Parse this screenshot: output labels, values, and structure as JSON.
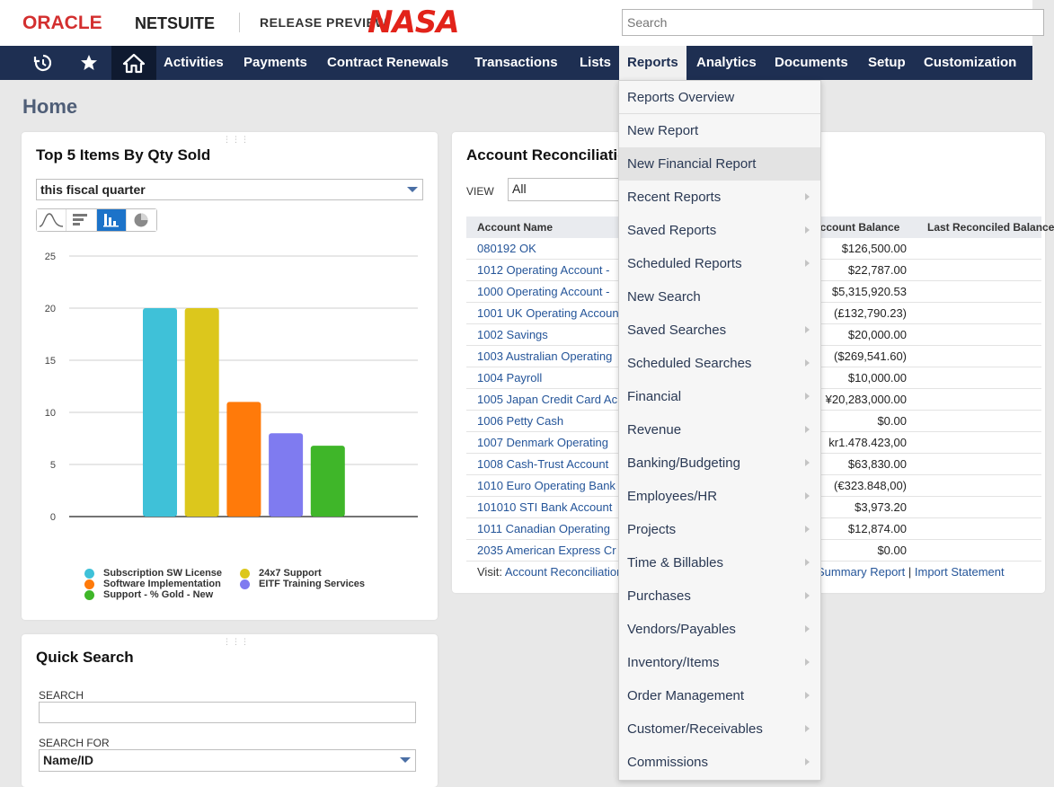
{
  "header": {
    "oracle": "ORACLE",
    "netsuite": "NETSUITE",
    "release_preview": "RELEASE PREVIEW",
    "nasa": "NASA",
    "search_placeholder": "Search"
  },
  "nav": {
    "items": [
      "Activities",
      "Payments",
      "Contract Renewals",
      "Transactions",
      "Lists",
      "Reports",
      "Analytics",
      "Documents",
      "Setup",
      "Customization"
    ],
    "active": "Reports"
  },
  "page": {
    "title": "Home"
  },
  "top_items_portlet": {
    "title": "Top 5 Items By Qty Sold",
    "period": "this fiscal quarter",
    "chart_types": [
      "line",
      "horizontal-bar",
      "bar",
      "pie"
    ],
    "active_chart_type": "bar"
  },
  "chart_data": {
    "type": "bar",
    "categories": [
      "Subscription SW License",
      "24x7 Support",
      "Software Implementation",
      "EITF Training Services",
      "Support - % Gold - New"
    ],
    "values": [
      20,
      20,
      11,
      8,
      6.8
    ],
    "colors": [
      "#3fc1d8",
      "#dcc71c",
      "#ff7a0a",
      "#7f7bf0",
      "#3fb629"
    ],
    "ylim": [
      0,
      25
    ],
    "yticks": [
      0,
      5,
      10,
      15,
      20,
      25
    ],
    "grid": true,
    "legend": [
      {
        "label": "Subscription SW License",
        "color": "#3fc1d8"
      },
      {
        "label": "24x7 Support",
        "color": "#dcc71c"
      },
      {
        "label": "Software Implementation",
        "color": "#ff7a0a"
      },
      {
        "label": "EITF Training Services",
        "color": "#7f7bf0"
      },
      {
        "label": "Support - % Gold - New",
        "color": "#3fb629"
      }
    ],
    "legend_position": "bottom"
  },
  "account_portlet": {
    "title": "Account Reconciliation",
    "view_label": "VIEW",
    "view_value": "All",
    "columns": [
      "Account Name",
      "Account Balance",
      "Last Reconciled Balance"
    ],
    "rows": [
      {
        "name": "080192 OK",
        "balance": "$126,500.00"
      },
      {
        "name": "1012 Operating Account - ",
        "balance": "$22,787.00"
      },
      {
        "name": "1000 Operating Account - ",
        "balance": "$5,315,920.53"
      },
      {
        "name": "1001 UK Operating Account",
        "balance": "(£132,790.23)"
      },
      {
        "name": "1002 Savings",
        "balance": "$20,000.00"
      },
      {
        "name": "1003 Australian Operating",
        "balance": "($269,541.60)"
      },
      {
        "name": "1004 Payroll",
        "balance": "$10,000.00"
      },
      {
        "name": "1005 Japan Credit Card Ac",
        "balance": "¥20,283,000.00"
      },
      {
        "name": "1006 Petty Cash",
        "balance": "$0.00"
      },
      {
        "name": "1007 Denmark Operating ",
        "balance": "kr1.478.423,00"
      },
      {
        "name": "1008 Cash-Trust Account",
        "balance": "$63,830.00"
      },
      {
        "name": "1010 Euro Operating Bank",
        "balance": "(€323.848,00)"
      },
      {
        "name": "101010 STI Bank Account",
        "balance": "$3,973.20"
      },
      {
        "name": "1011 Canadian Operating",
        "balance": "$12,874.00"
      },
      {
        "name": "2035 American Express Cr",
        "balance": "$0.00"
      }
    ],
    "visit_prefix": "Visit:",
    "visit_link": "Account Reconciliation",
    "summary_link": "Summary Report",
    "separator": "|",
    "import_link": "Import Statement"
  },
  "reports_menu": {
    "items": [
      {
        "label": "Reports Overview",
        "submenu": false
      },
      {
        "label": "New Report",
        "submenu": false
      },
      {
        "label": "New Financial Report",
        "submenu": false
      },
      {
        "label": "Recent Reports",
        "submenu": true
      },
      {
        "label": "Saved Reports",
        "submenu": true
      },
      {
        "label": "Scheduled Reports",
        "submenu": true
      },
      {
        "label": "New Search",
        "submenu": false
      },
      {
        "label": "Saved Searches",
        "submenu": true
      },
      {
        "label": "Scheduled Searches",
        "submenu": true
      },
      {
        "label": "Financial",
        "submenu": true
      },
      {
        "label": "Revenue",
        "submenu": true
      },
      {
        "label": "Banking/Budgeting",
        "submenu": true
      },
      {
        "label": "Employees/HR",
        "submenu": true
      },
      {
        "label": "Projects",
        "submenu": true
      },
      {
        "label": "Time & Billables",
        "submenu": true
      },
      {
        "label": "Purchases",
        "submenu": true
      },
      {
        "label": "Vendors/Payables",
        "submenu": true
      },
      {
        "label": "Inventory/Items",
        "submenu": true
      },
      {
        "label": "Order Management",
        "submenu": true
      },
      {
        "label": "Customer/Receivables",
        "submenu": true
      },
      {
        "label": "Commissions",
        "submenu": true
      }
    ],
    "hovered": "New Financial Report"
  },
  "quick_search": {
    "title": "Quick Search",
    "search_label": "SEARCH",
    "search_value": "",
    "search_for_label": "SEARCH FOR",
    "search_for_value": "Name/ID"
  }
}
